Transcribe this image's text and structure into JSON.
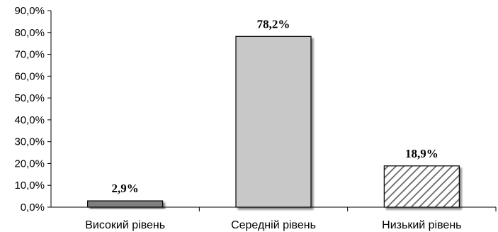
{
  "chart_data": {
    "type": "bar",
    "title": "",
    "xlabel": "",
    "ylabel": "",
    "categories": [
      "Високий рівень",
      "Середній рівень",
      "Низький рівень"
    ],
    "values": [
      2.9,
      78.2,
      18.9
    ],
    "data_labels": [
      "2,9%",
      "78,2%",
      "18,9%"
    ],
    "ylim": [
      0,
      90
    ],
    "yticks": [
      0,
      10,
      20,
      30,
      40,
      50,
      60,
      70,
      80,
      90
    ],
    "ytick_labels": [
      "0,0%",
      "10,0%",
      "20,0%",
      "30,0%",
      "40,0%",
      "50,0%",
      "60,0%",
      "70,0%",
      "80,0%",
      "90,0%"
    ],
    "bar_fills": [
      "#7f7f7f",
      "#c8c8c8",
      "hatch"
    ],
    "grid": false,
    "legend": "none"
  }
}
